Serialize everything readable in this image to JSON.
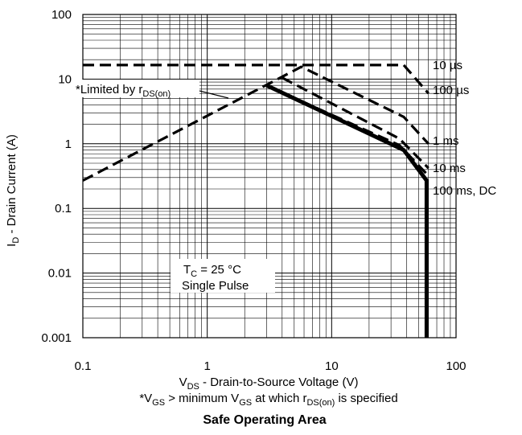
{
  "chart_data": {
    "type": "line",
    "title": "Safe Operating Area",
    "xscale": "log",
    "yscale": "log",
    "xlim": [
      0.1,
      100
    ],
    "ylim": [
      0.001,
      100
    ],
    "grid": true,
    "xticks": [
      "0.1",
      "1",
      "10",
      "100"
    ],
    "yticks": [
      "100",
      "10",
      "1",
      "0.1",
      "0.01",
      "0.001"
    ],
    "xlabel": {
      "main": "V",
      "sub": "DS",
      "rest": "  -  Drain-to-Source Voltage (V)"
    },
    "ylabel": {
      "main": "I",
      "sub": "D",
      "rest": " -  Drain Current (A)"
    },
    "footnote": {
      "p1": "*V",
      "s1": "GS",
      "p2": " > minimum V",
      "s2": "GS",
      "p3": " at which r",
      "s3": "DS(on)",
      "p4": " is specified"
    },
    "limit_note": {
      "p1": "*Limited by r",
      "s1": "DS(on)"
    },
    "conditions": {
      "p1": "T",
      "s1": "C",
      "p2": " = 25 °C",
      "line2": "Single Pulse"
    },
    "series": [
      {
        "name": "10 µs",
        "style": "dashed",
        "points": [
          [
            0.1,
            16.5
          ],
          [
            38,
            16.5
          ],
          [
            60,
            6
          ]
        ]
      },
      {
        "name": "100 µs",
        "style": "dashed",
        "points": [
          [
            0.1,
            0.27
          ],
          [
            5.7,
            15.5
          ],
          [
            38,
            2.6
          ],
          [
            60,
            1.0
          ]
        ]
      },
      {
        "name": "1 ms",
        "style": "dashed",
        "points": [
          [
            4.0,
            10.5
          ],
          [
            35,
            1.2
          ],
          [
            60,
            0.42
          ]
        ]
      },
      {
        "name": "10 ms",
        "style": "dashed",
        "points": [
          [
            3.2,
            7.5
          ],
          [
            35,
            0.95
          ],
          [
            60,
            0.32
          ]
        ]
      },
      {
        "name": "100 ms, DC",
        "style": "solid",
        "points": [
          [
            3.0,
            8.0
          ],
          [
            38,
            0.8
          ],
          [
            58,
            0.27
          ],
          [
            58,
            0.001
          ]
        ]
      }
    ]
  }
}
